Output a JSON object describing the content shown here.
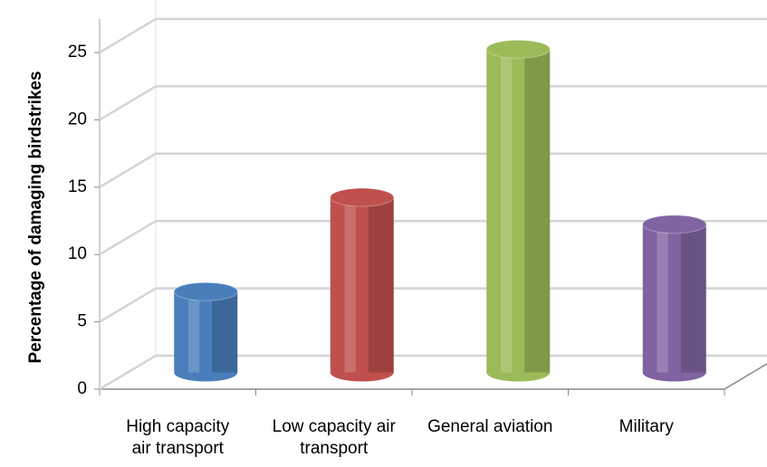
{
  "chart_data": {
    "type": "bar3d",
    "y_label": "Percentage of damaging birdstrikes",
    "categories": [
      "High capacity air transport",
      "Low capacity air transport",
      "General aviation",
      "Military"
    ],
    "values": [
      6,
      13,
      24,
      11
    ],
    "colors": [
      "#4a7ebb",
      "#c0504d",
      "#9bbb59",
      "#8064a2"
    ],
    "ylim": [
      0,
      25
    ],
    "yticks": [
      0,
      5,
      10,
      15,
      20,
      25
    ],
    "grid": true
  }
}
